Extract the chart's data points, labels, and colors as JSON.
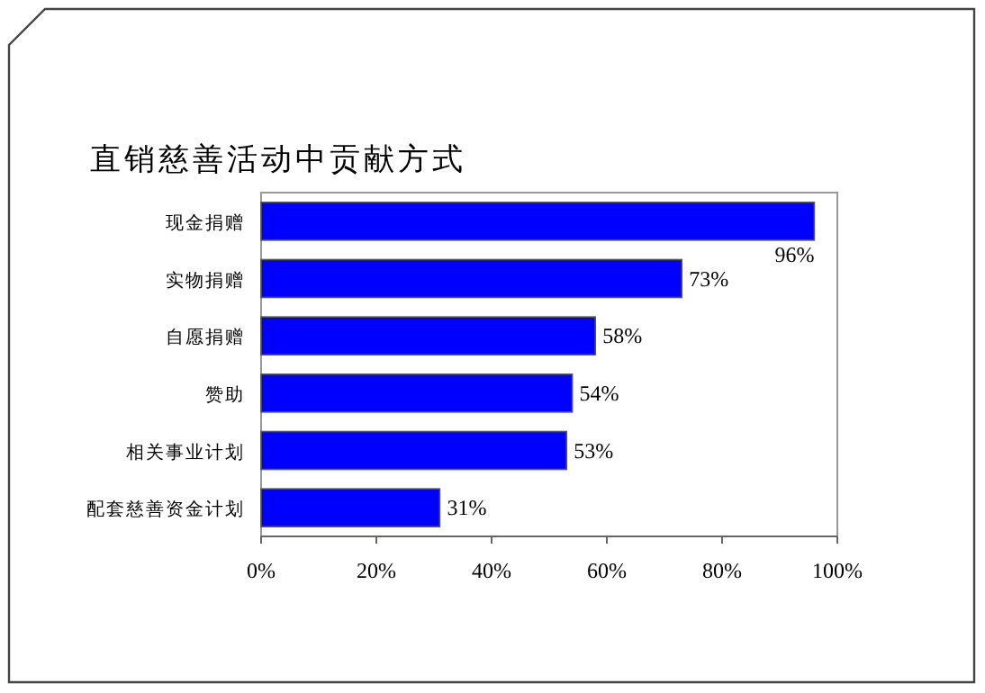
{
  "chart_data": {
    "type": "bar",
    "orientation": "horizontal",
    "title": "直销慈善活动中贡献方式",
    "categories": [
      "现金捐赠",
      "实物捐赠",
      "自愿捐赠",
      "赞助",
      "相关事业计划",
      "配套慈善资金计划"
    ],
    "values": [
      96,
      73,
      58,
      54,
      53,
      31
    ],
    "value_labels": [
      "96%",
      "73%",
      "58%",
      "54%",
      "53%",
      "31%"
    ],
    "color": "#0000ff",
    "xlim": [
      0,
      100
    ],
    "xticks": [
      {
        "value": 0,
        "label": "0%"
      },
      {
        "value": 20,
        "label": "20%"
      },
      {
        "value": 40,
        "label": "40%"
      },
      {
        "value": 60,
        "label": "60%"
      },
      {
        "value": 80,
        "label": "80%"
      },
      {
        "value": 100,
        "label": "100%"
      }
    ],
    "line_style": "solid"
  }
}
